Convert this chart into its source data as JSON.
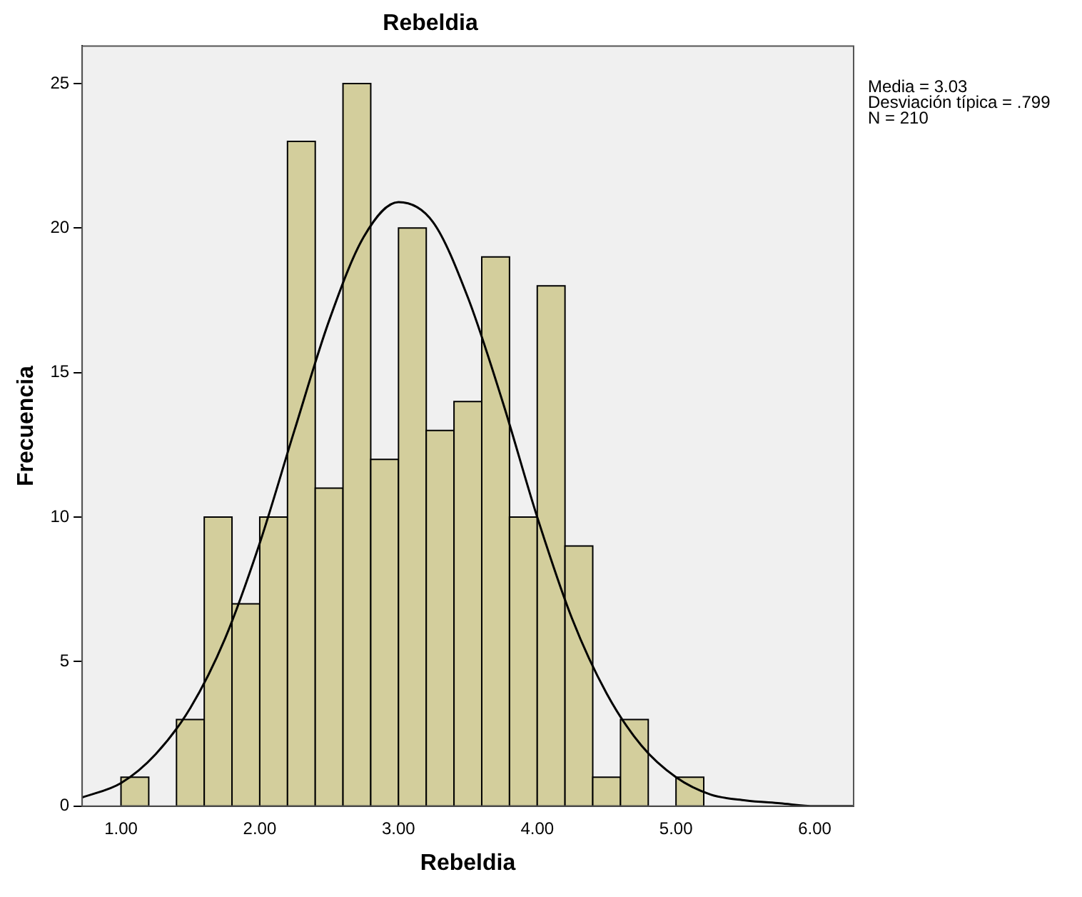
{
  "chart_data": {
    "type": "histogram",
    "title": "Rebeldia",
    "xlabel": "Rebeldia",
    "ylabel": "Frecuencia",
    "bins": [
      1.0,
      1.2,
      1.4,
      1.6,
      1.8,
      2.0,
      2.2,
      2.4,
      2.6,
      2.8,
      3.0,
      3.2,
      3.4,
      3.6,
      3.8,
      4.0,
      4.2,
      4.4,
      4.6,
      4.8,
      5.0,
      5.2
    ],
    "series": [
      {
        "color": "#d3ce9c",
        "values": [
          1,
          0,
          3,
          10,
          7,
          10,
          23,
          11,
          25,
          12,
          20,
          13,
          14,
          19,
          10,
          18,
          9,
          1,
          3,
          0,
          1
        ]
      },
      {
        "type": "line",
        "color": "#000000",
        "x": [
          0.72,
          1.0,
          1.25,
          1.5,
          1.75,
          2.0,
          2.25,
          2.5,
          2.75,
          3.0,
          3.25,
          3.5,
          3.75,
          4.0,
          4.25,
          4.5,
          4.75,
          5.0,
          5.25,
          5.5,
          5.75,
          6.0,
          6.28
        ],
        "values": [
          0.3,
          0.8,
          1.8,
          3.4,
          5.8,
          9.1,
          13.0,
          16.8,
          19.7,
          20.9,
          20.2,
          17.6,
          14.0,
          10.0,
          6.5,
          3.9,
          2.1,
          1.0,
          0.4,
          0.2,
          0.1,
          0.0,
          0.0
        ]
      }
    ],
    "xlim": [
      0.72,
      6.28
    ],
    "xticks": [
      {
        "value": 1,
        "label": "1.00"
      },
      {
        "value": 2,
        "label": "2.00"
      },
      {
        "value": 3,
        "label": "3.00"
      },
      {
        "value": 4,
        "label": "4.00"
      },
      {
        "value": 5,
        "label": "5.00"
      },
      {
        "value": 6,
        "label": "6.00"
      }
    ],
    "ylim": [
      0,
      26.3
    ],
    "yticks": [
      0,
      5,
      10,
      15,
      20,
      25
    ],
    "grid": false,
    "legend": false,
    "marker": "none",
    "line_style": "solid",
    "annotations": [
      "Media = 3.03",
      "Desviación típica = .799",
      "N = 210"
    ]
  }
}
